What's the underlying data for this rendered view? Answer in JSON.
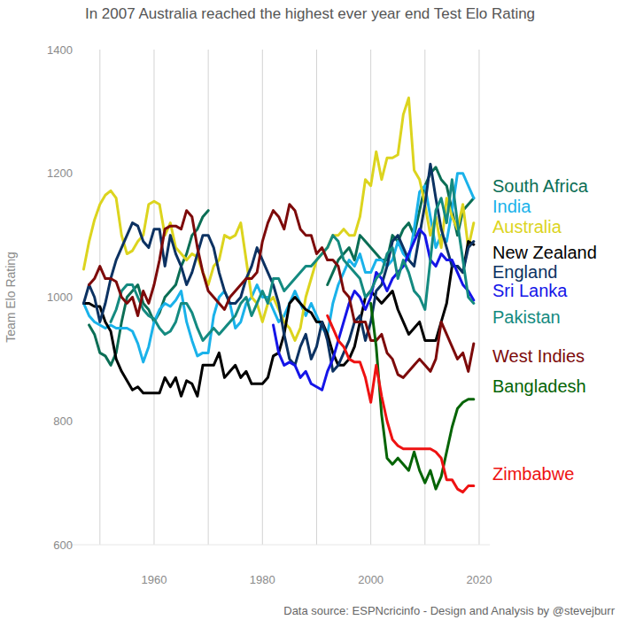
{
  "chart_data": {
    "type": "line",
    "title": "In 2007 Australia reached the highest ever year end Test Elo Rating",
    "y_label": "Team Elo Rating",
    "caption": "Data source: ESPNcricinfo - Design and Analysis by @stevejburr",
    "xlim": [
      1944,
      2022
    ],
    "xticks": [
      1960,
      1980,
      2000,
      2020
    ],
    "xminorticks": [
      1950,
      1970,
      1990,
      2010
    ],
    "ylim": [
      600,
      1400
    ],
    "yticks": [
      600,
      800,
      1000,
      1200,
      1400
    ],
    "grid": true,
    "x": [
      1947,
      1948,
      1949,
      1950,
      1951,
      1952,
      1953,
      1954,
      1955,
      1956,
      1957,
      1958,
      1959,
      1960,
      1961,
      1962,
      1963,
      1964,
      1965,
      1966,
      1967,
      1968,
      1969,
      1970,
      1971,
      1972,
      1973,
      1974,
      1975,
      1976,
      1977,
      1978,
      1979,
      1980,
      1981,
      1982,
      1983,
      1984,
      1985,
      1986,
      1987,
      1988,
      1989,
      1990,
      1991,
      1992,
      1993,
      1994,
      1995,
      1996,
      1997,
      1998,
      1999,
      2000,
      2001,
      2002,
      2003,
      2004,
      2005,
      2006,
      2007,
      2008,
      2009,
      2010,
      2011,
      2012,
      2013,
      2014,
      2015,
      2016,
      2017,
      2018,
      2019
    ],
    "series": [
      {
        "name": "South Africa",
        "color": "#0b6e55",
        "values": [
          null,
          955,
          940,
          910,
          905,
          890,
          910,
          960,
          1000,
          1010,
          1020,
          990,
          980,
          960,
          975,
          1000,
          1010,
          1020,
          1050,
          1070,
          1100,
          1110,
          1130,
          1140,
          null,
          null,
          null,
          null,
          null,
          null,
          null,
          null,
          null,
          null,
          null,
          null,
          null,
          null,
          null,
          null,
          null,
          null,
          null,
          null,
          null,
          1020,
          1040,
          1060,
          1070,
          1080,
          1060,
          1100,
          1090,
          1080,
          1070,
          1060,
          1060,
          1100,
          1090,
          1110,
          1120,
          1100,
          1140,
          1180,
          1200,
          1210,
          1190,
          1180,
          1140,
          1100,
          1140,
          1150,
          1160
        ]
      },
      {
        "name": "India",
        "color": "#1ab2ea",
        "values": [
          990,
          970,
          960,
          955,
          950,
          955,
          950,
          950,
          950,
          945,
          925,
          895,
          920,
          960,
          980,
          990,
          985,
          995,
          1010,
          960,
          930,
          905,
          910,
          910,
          970,
          1000,
          1010,
          990,
          950,
          960,
          990,
          1000,
          1020,
          1000,
          1000,
          980,
          960,
          970,
          990,
          1010,
          990,
          970,
          990,
          970,
          950,
          940,
          990,
          1020,
          1040,
          1060,
          1050,
          1070,
          1040,
          1040,
          1060,
          1060,
          1050,
          1060,
          1090,
          1070,
          1060,
          1110,
          1170,
          1180,
          1130,
          1080,
          1100,
          1090,
          1140,
          1200,
          1200,
          1180,
          1160
        ]
      },
      {
        "name": "Australia",
        "color": "#dcd41e",
        "values": [
          1045,
          1090,
          1125,
          1150,
          1165,
          1172,
          1160,
          1100,
          1070,
          1075,
          1090,
          1100,
          1150,
          1155,
          1150,
          1100,
          1120,
          1080,
          1070,
          1060,
          1070,
          1065,
          1040,
          1020,
          1050,
          1060,
          1100,
          1095,
          1100,
          1120,
          1060,
          1000,
          990,
          960,
          990,
          1000,
          980,
          960,
          950,
          930,
          950,
          1000,
          1030,
          1060,
          1070,
          1080,
          1100,
          1100,
          1110,
          1100,
          1100,
          1130,
          1190,
          1180,
          1235,
          1190,
          1225,
          1225,
          1230,
          1295,
          1322,
          1205,
          1190,
          1150,
          1100,
          1130,
          1080,
          1160,
          1130,
          1110,
          1150,
          1080,
          1120
        ]
      },
      {
        "name": "New Zealand",
        "color": "#000000",
        "values": [
          990,
          990,
          985,
          985,
          960,
          945,
          900,
          880,
          865,
          850,
          855,
          845,
          845,
          845,
          845,
          870,
          855,
          870,
          840,
          865,
          860,
          840,
          890,
          890,
          890,
          910,
          870,
          880,
          890,
          870,
          880,
          860,
          860,
          860,
          870,
          905,
          910,
          940,
          990,
          1000,
          990,
          980,
          975,
          960,
          960,
          940,
          910,
          890,
          890,
          900,
          920,
          960,
          1000,
          1010,
          1000,
          990,
          1000,
          1010,
          980,
          960,
          940,
          950,
          960,
          930,
          930,
          930,
          960,
          990,
          1050,
          1050,
          1040,
          1090,
          1085
        ]
      },
      {
        "name": "England",
        "color": "#0c3262",
        "values": [
          990,
          1020,
          1000,
          960,
          990,
          1030,
          1060,
          1080,
          1100,
          1120,
          1115,
          1090,
          1080,
          1110,
          1110,
          1050,
          1100,
          1070,
          1050,
          1020,
          1040,
          1070,
          1100,
          1100,
          1080,
          1040,
          1010,
          990,
          990,
          1000,
          1030,
          1050,
          1080,
          1060,
          1040,
          1020,
          990,
          940,
          900,
          890,
          920,
          940,
          900,
          920,
          960,
          930,
          880,
          890,
          910,
          930,
          960,
          970,
          930,
          960,
          1010,
          1020,
          1050,
          1090,
          1100,
          1080,
          1060,
          1050,
          1100,
          1150,
          1215,
          1160,
          1110,
          1080,
          1050,
          1050,
          1040,
          1080,
          1090
        ]
      },
      {
        "name": "Sri Lanka",
        "color": "#1515e8",
        "values": [
          null,
          null,
          null,
          null,
          null,
          null,
          null,
          null,
          null,
          null,
          null,
          null,
          null,
          null,
          null,
          null,
          null,
          null,
          null,
          null,
          null,
          null,
          null,
          null,
          null,
          null,
          null,
          null,
          null,
          null,
          null,
          null,
          null,
          null,
          null,
          955,
          910,
          890,
          895,
          890,
          870,
          880,
          860,
          855,
          850,
          880,
          900,
          930,
          960,
          990,
          1010,
          1000,
          980,
          1000,
          1040,
          1030,
          1010,
          1030,
          1040,
          1050,
          1070,
          1090,
          1110,
          1100,
          1060,
          1050,
          1070,
          1060,
          1060,
          1040,
          1020,
          1010,
          995
        ]
      },
      {
        "name": "Pakistan",
        "color": "#148a80",
        "values": [
          null,
          null,
          null,
          null,
          null,
          960,
          980,
          1010,
          1020,
          1020,
          1000,
          980,
          970,
          965,
          950,
          940,
          945,
          960,
          990,
          990,
          975,
          950,
          930,
          940,
          950,
          940,
          950,
          960,
          970,
          990,
          1000,
          970,
          990,
          1010,
          990,
          1030,
          1030,
          1010,
          1020,
          1030,
          1040,
          1050,
          1050,
          1060,
          1070,
          1080,
          1100,
          1090,
          1060,
          1050,
          1040,
          1030,
          1000,
          1010,
          1030,
          1040,
          1070,
          1080,
          1030,
          1060,
          1040,
          1010,
          1000,
          980,
          1060,
          1140,
          1160,
          1120,
          1190,
          1120,
          1060,
          1000,
          990
        ]
      },
      {
        "name": "West Indies",
        "color": "#7d0a0a",
        "values": [
          null,
          1020,
          1030,
          1050,
          1030,
          1030,
          1025,
          1000,
          990,
          1000,
          970,
          1010,
          990,
          1020,
          1060,
          1110,
          1115,
          1115,
          1110,
          1140,
          1130,
          1080,
          1040,
          1010,
          1000,
          990,
          980,
          1000,
          1010,
          1020,
          1030,
          1030,
          1040,
          1090,
          1120,
          1140,
          1130,
          1110,
          1150,
          1140,
          1110,
          1100,
          1100,
          1070,
          1080,
          1060,
          1060,
          1050,
          1010,
          1000,
          960,
          960,
          960,
          930,
          930,
          940,
          910,
          900,
          875,
          870,
          880,
          890,
          900,
          890,
          880,
          900,
          960,
          940,
          920,
          900,
          910,
          880,
          925
        ]
      },
      {
        "name": "Bangladesh",
        "color": "#056405",
        "values": [
          null,
          null,
          null,
          null,
          null,
          null,
          null,
          null,
          null,
          null,
          null,
          null,
          null,
          null,
          null,
          null,
          null,
          null,
          null,
          null,
          null,
          null,
          null,
          null,
          null,
          null,
          null,
          null,
          null,
          null,
          null,
          null,
          null,
          null,
          null,
          null,
          null,
          null,
          null,
          null,
          null,
          null,
          null,
          null,
          null,
          null,
          null,
          null,
          null,
          null,
          null,
          null,
          null,
          990,
          920,
          810,
          740,
          730,
          740,
          730,
          720,
          750,
          720,
          700,
          720,
          690,
          710,
          750,
          790,
          820,
          830,
          835,
          835
        ]
      },
      {
        "name": "Zimbabwe",
        "color": "#ee1212",
        "values": [
          null,
          null,
          null,
          null,
          null,
          null,
          null,
          null,
          null,
          null,
          null,
          null,
          null,
          null,
          null,
          null,
          null,
          null,
          null,
          null,
          null,
          null,
          null,
          null,
          null,
          null,
          null,
          null,
          null,
          null,
          null,
          null,
          null,
          null,
          null,
          null,
          null,
          null,
          null,
          null,
          null,
          null,
          null,
          null,
          null,
          970,
          950,
          930,
          920,
          900,
          895,
          895,
          870,
          830,
          890,
          840,
          800,
          770,
          760,
          755,
          755,
          755,
          755,
          755,
          755,
          750,
          740,
          705,
          705,
          690,
          685,
          695,
          695
        ]
      }
    ]
  }
}
